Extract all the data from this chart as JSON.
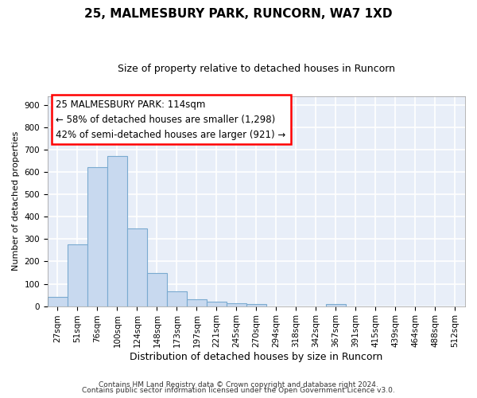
{
  "title1": "25, MALMESBURY PARK, RUNCORN, WA7 1XD",
  "title2": "Size of property relative to detached houses in Runcorn",
  "xlabel": "Distribution of detached houses by size in Runcorn",
  "ylabel": "Number of detached properties",
  "bar_color": "#c8d9ef",
  "bar_edge_color": "#7aaad0",
  "background_color": "#e8eef8",
  "grid_color": "white",
  "categories": [
    "27sqm",
    "51sqm",
    "76sqm",
    "100sqm",
    "124sqm",
    "148sqm",
    "173sqm",
    "197sqm",
    "221sqm",
    "245sqm",
    "270sqm",
    "294sqm",
    "318sqm",
    "342sqm",
    "367sqm",
    "391sqm",
    "415sqm",
    "439sqm",
    "464sqm",
    "488sqm",
    "512sqm"
  ],
  "values": [
    43,
    278,
    622,
    670,
    347,
    148,
    65,
    30,
    20,
    13,
    8,
    0,
    0,
    0,
    8,
    0,
    0,
    0,
    0,
    0,
    0
  ],
  "ylim": [
    0,
    940
  ],
  "yticks": [
    0,
    100,
    200,
    300,
    400,
    500,
    600,
    700,
    800,
    900
  ],
  "annotation_text1": "25 MALMESBURY PARK: 114sqm",
  "annotation_text2": "← 58% of detached houses are smaller (1,298)",
  "annotation_text3": "42% of semi-detached houses are larger (921) →",
  "footnote1": "Contains HM Land Registry data © Crown copyright and database right 2024.",
  "footnote2": "Contains public sector information licensed under the Open Government Licence v3.0.",
  "title1_fontsize": 11,
  "title2_fontsize": 9,
  "ylabel_fontsize": 8,
  "xlabel_fontsize": 9,
  "tick_fontsize": 7.5,
  "annot_fontsize": 8.5,
  "footnote_fontsize": 6.5
}
